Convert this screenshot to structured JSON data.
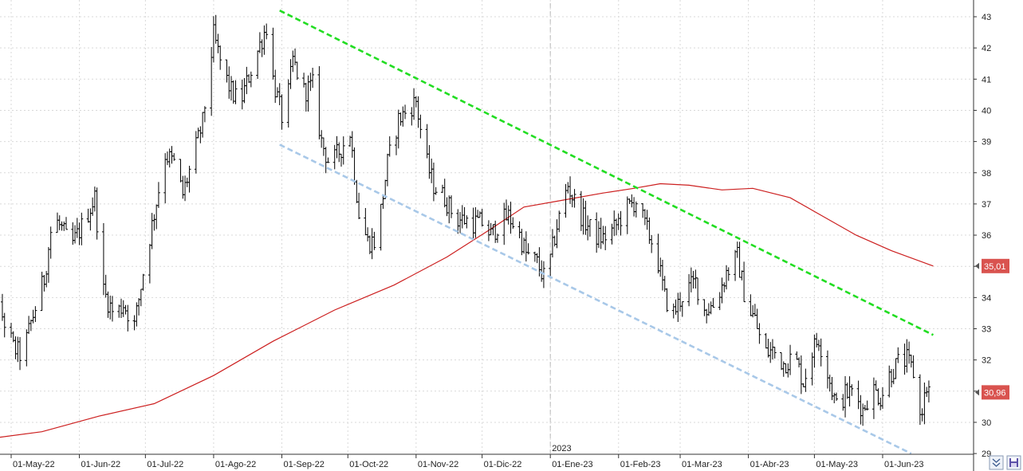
{
  "chart_data": {
    "type": "ohlc",
    "title": "",
    "xlabel": "",
    "ylabel": "",
    "ylim": [
      29,
      43.5
    ],
    "y_ticks": [
      43,
      42,
      41,
      40,
      39,
      38,
      37,
      36,
      35,
      34,
      33,
      32,
      31,
      30,
      29
    ],
    "x_labels": [
      "01-May-22",
      "01-Jun-22",
      "01-Jul-22",
      "01-Ago-22",
      "01-Sep-22",
      "01-Oct-22",
      "01-Nov-22",
      "01-Dic-22",
      "01-Ene-23",
      "01-Feb-23",
      "01-Mar-23",
      "01-Abr-23",
      "01-May-23",
      "01-Jun-23"
    ],
    "x_label_dates": [
      "2022-05-01",
      "2022-06-01",
      "2022-07-01",
      "2022-08-01",
      "2022-09-01",
      "2022-10-01",
      "2022-11-01",
      "2022-12-01",
      "2023-01-01",
      "2023-02-01",
      "2023-03-01",
      "2023-04-01",
      "2023-05-01",
      "2023-06-01"
    ],
    "year_marker": {
      "label": "2023",
      "date": "2023-01-01"
    },
    "grid": true,
    "colors": {
      "bars": "#000000",
      "moving_average": "#cc1f1f",
      "upper_trendline": "#22dd22",
      "lower_trendline": "#a8c8e8",
      "grid": "#d9d9d9",
      "last_price_badge": "#d9534f",
      "ma_badge": "#d9534f"
    },
    "price_points": [
      [
        "2022-04-18",
        34.0
      ],
      [
        "2022-04-22",
        34.7
      ],
      [
        "2022-04-26",
        33.6
      ],
      [
        "2022-05-02",
        32.4
      ],
      [
        "2022-05-06",
        32.1
      ],
      [
        "2022-05-10",
        33.2
      ],
      [
        "2022-05-16",
        34.6
      ],
      [
        "2022-05-20",
        36.6
      ],
      [
        "2022-05-24",
        36.2
      ],
      [
        "2022-05-28",
        35.6
      ],
      [
        "2022-06-03",
        36.4
      ],
      [
        "2022-06-08",
        37.2
      ],
      [
        "2022-06-12",
        34.2
      ],
      [
        "2022-06-17",
        33.4
      ],
      [
        "2022-06-21",
        33.8
      ],
      [
        "2022-06-26",
        33.1
      ],
      [
        "2022-06-30",
        34.8
      ],
      [
        "2022-07-05",
        36.7
      ],
      [
        "2022-07-10",
        38.6
      ],
      [
        "2022-07-14",
        38.3
      ],
      [
        "2022-07-18",
        37.3
      ],
      [
        "2022-07-22",
        38.3
      ],
      [
        "2022-07-27",
        39.6
      ],
      [
        "2022-08-01",
        42.4
      ],
      [
        "2022-08-05",
        41.3
      ],
      [
        "2022-08-09",
        40.6
      ],
      [
        "2022-08-13",
        40.2
      ],
      [
        "2022-08-17",
        41.1
      ],
      [
        "2022-08-21",
        41.9
      ],
      [
        "2022-08-25",
        42.7
      ],
      [
        "2022-08-28",
        41.0
      ],
      [
        "2022-09-02",
        39.5
      ],
      [
        "2022-09-06",
        41.6
      ],
      [
        "2022-09-11",
        40.6
      ],
      [
        "2022-09-15",
        40.8
      ],
      [
        "2022-09-19",
        39.0
      ],
      [
        "2022-09-23",
        38.2
      ],
      [
        "2022-09-28",
        38.8
      ],
      [
        "2022-10-02",
        39.3
      ],
      [
        "2022-10-06",
        36.7
      ],
      [
        "2022-10-10",
        35.8
      ],
      [
        "2022-10-14",
        35.8
      ],
      [
        "2022-10-19",
        38.3
      ],
      [
        "2022-10-24",
        39.7
      ],
      [
        "2022-10-28",
        40.0
      ],
      [
        "2022-11-01",
        40.3
      ],
      [
        "2022-11-05",
        38.5
      ],
      [
        "2022-11-09",
        37.6
      ],
      [
        "2022-11-14",
        37.2
      ],
      [
        "2022-11-19",
        36.5
      ],
      [
        "2022-11-23",
        36.5
      ],
      [
        "2022-11-27",
        36.4
      ],
      [
        "2022-12-01",
        36.4
      ],
      [
        "2022-12-05",
        36.0
      ],
      [
        "2022-12-09",
        36.4
      ],
      [
        "2022-12-13",
        36.6
      ],
      [
        "2022-12-17",
        36.2
      ],
      [
        "2022-12-21",
        35.4
      ],
      [
        "2022-12-26",
        35.1
      ],
      [
        "2022-12-30",
        34.5
      ],
      [
        "2023-01-04",
        36.3
      ],
      [
        "2023-01-09",
        37.6
      ],
      [
        "2023-01-13",
        36.9
      ],
      [
        "2023-01-17",
        36.4
      ],
      [
        "2023-01-21",
        36.0
      ],
      [
        "2023-01-25",
        35.9
      ],
      [
        "2023-01-30",
        36.2
      ],
      [
        "2023-02-04",
        36.8
      ],
      [
        "2023-02-09",
        37.1
      ],
      [
        "2023-02-13",
        36.3
      ],
      [
        "2023-02-18",
        35.5
      ],
      [
        "2023-02-22",
        34.0
      ],
      [
        "2023-02-26",
        33.5
      ],
      [
        "2023-03-03",
        34.2
      ],
      [
        "2023-03-08",
        34.5
      ],
      [
        "2023-03-12",
        33.6
      ],
      [
        "2023-03-17",
        33.8
      ],
      [
        "2023-03-22",
        34.8
      ],
      [
        "2023-03-27",
        35.3
      ],
      [
        "2023-03-31",
        33.8
      ],
      [
        "2023-04-04",
        33.3
      ],
      [
        "2023-04-08",
        32.2
      ],
      [
        "2023-04-12",
        32.3
      ],
      [
        "2023-04-17",
        31.9
      ],
      [
        "2023-04-22",
        32.1
      ],
      [
        "2023-04-26",
        31.3
      ],
      [
        "2023-04-30",
        32.3
      ],
      [
        "2023-05-03",
        32.7
      ],
      [
        "2023-05-07",
        31.6
      ],
      [
        "2023-05-11",
        30.5
      ],
      [
        "2023-05-15",
        30.9
      ],
      [
        "2023-05-19",
        31.0
      ],
      [
        "2023-05-23",
        30.4
      ],
      [
        "2023-05-27",
        31.1
      ],
      [
        "2023-05-31",
        30.8
      ],
      [
        "2023-06-04",
        31.5
      ],
      [
        "2023-06-08",
        31.9
      ],
      [
        "2023-06-12",
        32.0
      ],
      [
        "2023-06-15",
        31.6
      ],
      [
        "2023-06-18",
        30.2
      ],
      [
        "2023-06-21",
        31.1
      ],
      [
        "2023-06-24",
        30.96
      ]
    ],
    "moving_average": [
      [
        "2022-04-18",
        29.45
      ],
      [
        "2022-05-15",
        29.7
      ],
      [
        "2022-06-10",
        30.2
      ],
      [
        "2022-07-05",
        30.6
      ],
      [
        "2022-08-01",
        31.5
      ],
      [
        "2022-08-28",
        32.6
      ],
      [
        "2022-09-25",
        33.6
      ],
      [
        "2022-10-22",
        34.4
      ],
      [
        "2022-11-15",
        35.3
      ],
      [
        "2022-12-05",
        36.2
      ],
      [
        "2022-12-20",
        36.9
      ],
      [
        "2023-01-05",
        37.1
      ],
      [
        "2023-01-25",
        37.35
      ],
      [
        "2023-02-08",
        37.5
      ],
      [
        "2023-02-20",
        37.65
      ],
      [
        "2023-03-05",
        37.6
      ],
      [
        "2023-03-20",
        37.45
      ],
      [
        "2023-04-03",
        37.5
      ],
      [
        "2023-04-20",
        37.2
      ],
      [
        "2023-05-05",
        36.6
      ],
      [
        "2023-05-20",
        36.0
      ],
      [
        "2023-06-05",
        35.5
      ],
      [
        "2023-06-24",
        35.01
      ]
    ],
    "upper_trendline": {
      "start": [
        "2022-08-31",
        43.2
      ],
      "end": [
        "2023-06-24",
        32.8
      ]
    },
    "lower_trendline": {
      "start": [
        "2022-08-31",
        38.9
      ],
      "end": [
        "2023-06-14",
        29.0
      ]
    },
    "last_price": "30,96",
    "last_ma": "35,01"
  },
  "axis_bottom_partial": "29",
  "toolbar": {
    "icons": [
      "double-chevron-icon",
      "save-icon"
    ]
  }
}
